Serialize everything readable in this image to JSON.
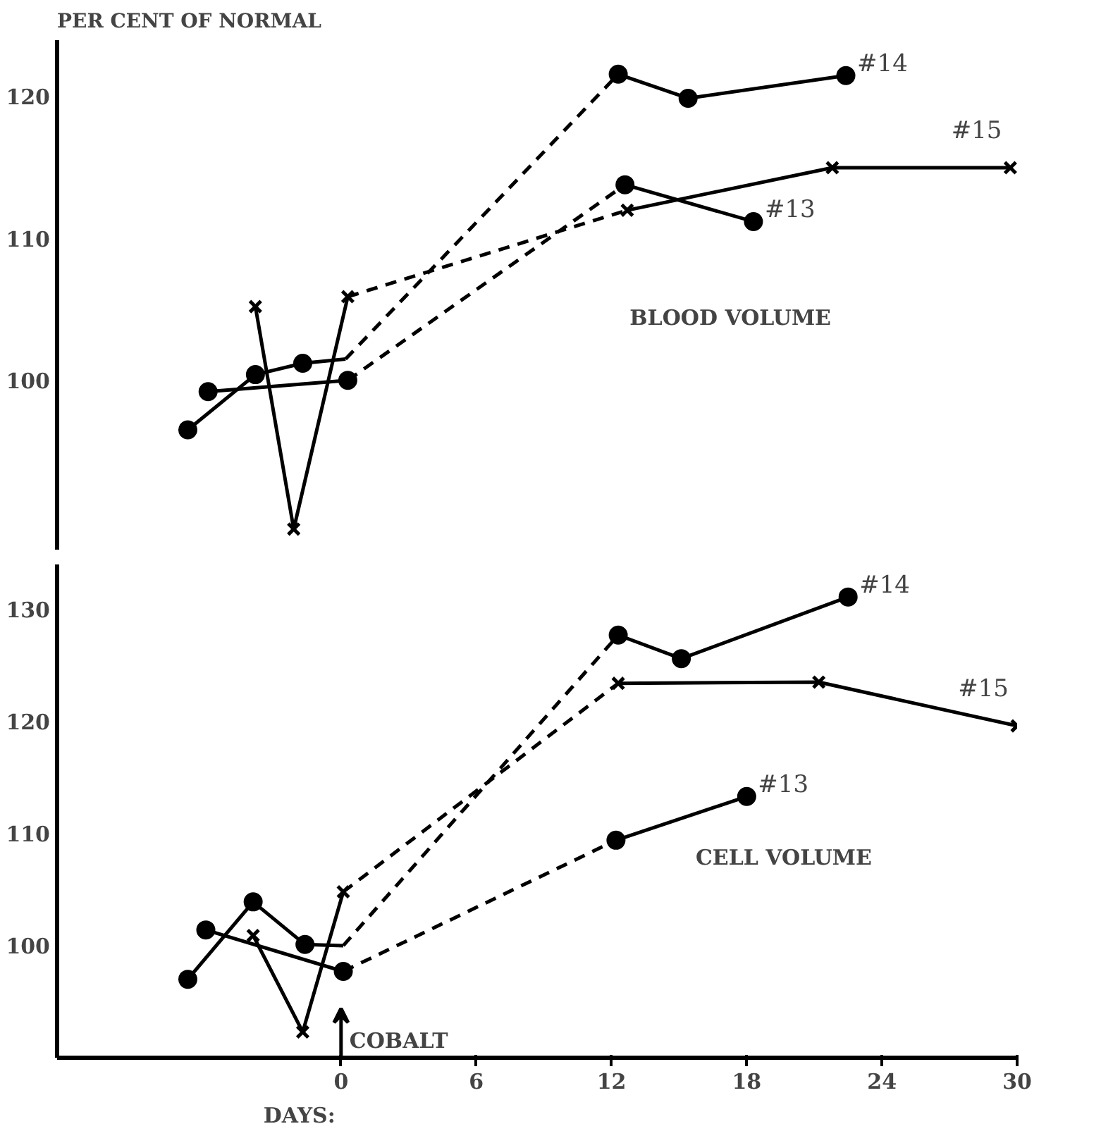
{
  "chart_data": [
    {
      "type": "line",
      "title": "BLOOD VOLUME",
      "ylabel": "PER CENT OF NORMAL",
      "xlim": [
        -12.6,
        30
      ],
      "ylim": [
        88,
        124
      ],
      "yticks": [
        100,
        110,
        120
      ],
      "xticks": [
        0,
        6,
        12,
        18,
        24,
        30
      ],
      "tick_labels": "y",
      "grid": false,
      "series": [
        {
          "color": "#000000",
          "marker": "circle",
          "line_style": "solid",
          "x": [
            -6.8,
            -3.8,
            -1.7
          ],
          "values": [
            96.5,
            100.4,
            101.2
          ]
        },
        {
          "color": "#000000",
          "line_style": "solid",
          "x": [
            -1.7,
            0.2
          ],
          "values": [
            101.2,
            101.5
          ]
        },
        {
          "color": "#000000",
          "line_style": "dashed",
          "x": [
            0.2,
            12.3
          ],
          "values": [
            101.5,
            121.6
          ]
        },
        {
          "color": "#000000",
          "marker": "circle",
          "line_style": "solid",
          "x": [
            12.3,
            15.4,
            22.4
          ],
          "values": [
            121.6,
            119.9,
            121.5
          ]
        },
        {
          "color": "#000000",
          "marker": "circle",
          "line_style": "solid",
          "x": [
            -5.9,
            0.3
          ],
          "values": [
            99.2,
            100.0
          ]
        },
        {
          "color": "#000000",
          "line_style": "dashed",
          "x": [
            0.3,
            12.6
          ],
          "values": [
            100.0,
            113.8
          ]
        },
        {
          "color": "#000000",
          "marker": "circle",
          "line_style": "solid",
          "x": [
            12.6,
            18.3
          ],
          "values": [
            113.8,
            111.2
          ]
        },
        {
          "color": "#000000",
          "marker": "cross",
          "line_style": "solid",
          "x": [
            -3.8,
            -2.1,
            0.3
          ],
          "values": [
            105.2,
            89.5,
            105.9
          ]
        },
        {
          "color": "#000000",
          "line_style": "dashed",
          "x": [
            0.3,
            12.7
          ],
          "values": [
            105.9,
            112.0
          ]
        },
        {
          "color": "#000000",
          "marker": "cross",
          "line_style": "solid",
          "x": [
            12.7,
            21.8,
            29.7
          ],
          "values": [
            112.0,
            115.0,
            115.0
          ]
        }
      ],
      "annotations": [
        {
          "text": "#14",
          "x": 22.4,
          "y": 121.5
        },
        {
          "text": "#13",
          "x": 18.3,
          "y": 111.2
        },
        {
          "text": "#15",
          "x": 29.7,
          "y": 115.0
        }
      ]
    },
    {
      "type": "line",
      "title": "CELL VOLUME",
      "xlabel": "DAYS:",
      "xlim": [
        -12.6,
        30
      ],
      "ylim": [
        90,
        134
      ],
      "yticks": [
        100,
        110,
        120,
        130
      ],
      "xticks": [
        0,
        6,
        12,
        18,
        24,
        30
      ],
      "grid": false,
      "series": [
        {
          "color": "#000000",
          "marker": "circle",
          "line_style": "solid",
          "x": [
            -6.8,
            -3.9,
            -1.6
          ],
          "values": [
            97.0,
            103.9,
            100.1
          ]
        },
        {
          "color": "#000000",
          "line_style": "solid",
          "x": [
            -1.6,
            0.1
          ],
          "values": [
            100.1,
            100.0
          ]
        },
        {
          "color": "#000000",
          "line_style": "dashed",
          "x": [
            0.1,
            12.3
          ],
          "values": [
            100.0,
            127.7
          ]
        },
        {
          "color": "#000000",
          "marker": "circle",
          "line_style": "solid",
          "x": [
            12.3,
            15.1,
            22.5
          ],
          "values": [
            127.7,
            125.6,
            131.1
          ]
        },
        {
          "color": "#000000",
          "marker": "circle",
          "line_style": "solid",
          "x": [
            -6.0,
            0.1
          ],
          "values": [
            101.4,
            97.7
          ]
        },
        {
          "color": "#000000",
          "line_style": "dashed",
          "x": [
            0.1,
            12.2
          ],
          "values": [
            97.7,
            109.4
          ]
        },
        {
          "color": "#000000",
          "marker": "circle",
          "line_style": "solid",
          "x": [
            12.2,
            18.0
          ],
          "values": [
            109.4,
            113.3
          ]
        },
        {
          "color": "#000000",
          "marker": "cross",
          "line_style": "solid",
          "x": [
            -3.9,
            -1.7,
            0.1
          ],
          "values": [
            100.9,
            92.3,
            104.8
          ]
        },
        {
          "color": "#000000",
          "line_style": "dashed",
          "x": [
            0.1,
            12.3
          ],
          "values": [
            104.8,
            123.4
          ]
        },
        {
          "color": "#000000",
          "marker": "cross",
          "line_style": "solid",
          "x": [
            12.3,
            21.2,
            30.0
          ],
          "values": [
            123.4,
            123.5,
            119.6
          ]
        }
      ],
      "annotations": [
        {
          "text": "#14",
          "x": 22.5,
          "y": 131.1
        },
        {
          "text": "#13",
          "x": 18.0,
          "y": 113.3
        },
        {
          "text": "#15",
          "x": 30.0,
          "y": 119.6
        },
        "COBALT"
      ]
    }
  ]
}
